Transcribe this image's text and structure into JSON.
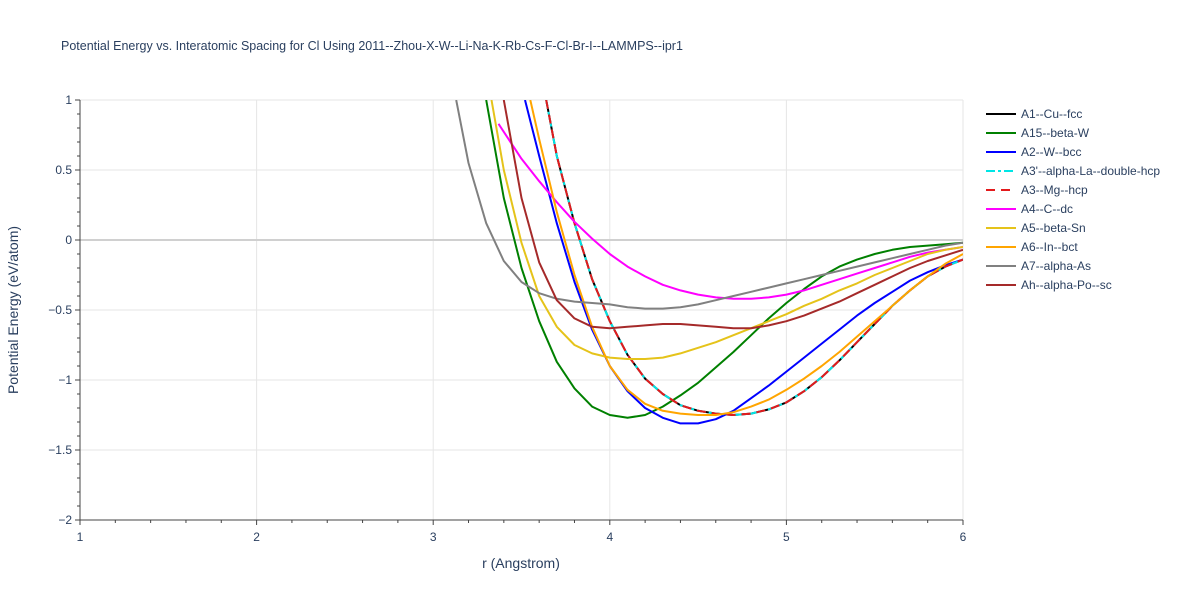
{
  "chart_data": {
    "type": "line",
    "title": "Potential Energy vs. Interatomic Spacing for Cl Using 2011--Zhou-X-W--Li-Na-K-Rb-Cs-F-Cl-Br-I--LAMMPS--ipr1",
    "xlabel": "r (Angstrom)",
    "ylabel": "Potential Energy (eV/atom)",
    "xlim": [
      1,
      6
    ],
    "ylim": [
      -2,
      1
    ],
    "x_ticks": [
      1,
      2,
      3,
      4,
      5,
      6
    ],
    "x_tick_labels": [
      "1",
      "2",
      "3",
      "4",
      "5",
      "6"
    ],
    "y_ticks": [
      -2,
      -1.5,
      -1,
      -0.5,
      0,
      0.5,
      1
    ],
    "y_tick_labels": [
      "−2",
      "−1.5",
      "−1",
      "−0.5",
      "0",
      "0.5",
      "1"
    ],
    "grid": true,
    "legend_position": "right",
    "series": [
      {
        "name": "A1--Cu--fcc",
        "color": "#000000",
        "dash": "solid",
        "x": [
          3.64,
          3.7,
          3.8,
          3.9,
          4.0,
          4.1,
          4.2,
          4.3,
          4.4,
          4.5,
          4.6,
          4.7,
          4.8,
          4.9,
          5.0,
          5.1,
          5.2,
          5.3,
          5.4,
          5.5,
          5.6,
          5.7,
          5.8,
          5.9,
          6.0
        ],
        "y": [
          1.0,
          0.6,
          0.12,
          -0.28,
          -0.58,
          -0.82,
          -0.99,
          -1.1,
          -1.18,
          -1.22,
          -1.24,
          -1.25,
          -1.24,
          -1.21,
          -1.16,
          -1.08,
          -0.98,
          -0.86,
          -0.73,
          -0.6,
          -0.47,
          -0.36,
          -0.26,
          -0.19,
          -0.14
        ]
      },
      {
        "name": "A15--beta-W",
        "color": "#008000",
        "dash": "solid",
        "x": [
          3.3,
          3.4,
          3.5,
          3.6,
          3.7,
          3.8,
          3.9,
          4.0,
          4.1,
          4.2,
          4.3,
          4.4,
          4.5,
          4.6,
          4.7,
          4.8,
          4.9,
          5.0,
          5.1,
          5.2,
          5.3,
          5.4,
          5.5,
          5.6,
          5.7,
          5.8,
          5.9,
          6.0
        ],
        "y": [
          1.0,
          0.3,
          -0.2,
          -0.58,
          -0.87,
          -1.06,
          -1.19,
          -1.25,
          -1.27,
          -1.25,
          -1.19,
          -1.11,
          -1.02,
          -0.91,
          -0.8,
          -0.68,
          -0.56,
          -0.45,
          -0.35,
          -0.26,
          -0.19,
          -0.14,
          -0.1,
          -0.07,
          -0.05,
          -0.04,
          -0.03,
          -0.02
        ]
      },
      {
        "name": "A2--W--bcc",
        "color": "#0000ff",
        "dash": "solid",
        "x": [
          3.52,
          3.6,
          3.7,
          3.8,
          3.9,
          4.0,
          4.1,
          4.2,
          4.3,
          4.4,
          4.5,
          4.6,
          4.7,
          4.8,
          4.9,
          5.0,
          5.1,
          5.2,
          5.3,
          5.4,
          5.5,
          5.6,
          5.7,
          5.8,
          5.9,
          6.0
        ],
        "y": [
          1.0,
          0.6,
          0.12,
          -0.3,
          -0.64,
          -0.9,
          -1.08,
          -1.2,
          -1.27,
          -1.31,
          -1.31,
          -1.28,
          -1.22,
          -1.13,
          -1.04,
          -0.94,
          -0.84,
          -0.74,
          -0.64,
          -0.54,
          -0.45,
          -0.37,
          -0.29,
          -0.23,
          -0.18,
          -0.14
        ]
      },
      {
        "name": "A3'--alpha-La--double-hcp",
        "color": "#00e5e5",
        "dash": "dashdot",
        "x": [
          3.64,
          3.7,
          3.8,
          3.9,
          4.0,
          4.1,
          4.2,
          4.3,
          4.4,
          4.5,
          4.6,
          4.7,
          4.8,
          4.9,
          5.0,
          5.1,
          5.2,
          5.3,
          5.4,
          5.5,
          5.6,
          5.7,
          5.8,
          5.9,
          6.0
        ],
        "y": [
          1.0,
          0.6,
          0.12,
          -0.28,
          -0.58,
          -0.82,
          -0.99,
          -1.1,
          -1.18,
          -1.22,
          -1.24,
          -1.25,
          -1.24,
          -1.21,
          -1.16,
          -1.08,
          -0.98,
          -0.86,
          -0.73,
          -0.6,
          -0.47,
          -0.36,
          -0.26,
          -0.19,
          -0.14
        ]
      },
      {
        "name": "A3--Mg--hcp",
        "color": "#e31a1c",
        "dash": "dash",
        "x": [
          3.64,
          3.7,
          3.8,
          3.9,
          4.0,
          4.1,
          4.2,
          4.3,
          4.4,
          4.5,
          4.6,
          4.7,
          4.8,
          4.9,
          5.0,
          5.1,
          5.2,
          5.3,
          5.4,
          5.5,
          5.6,
          5.7,
          5.8,
          5.9,
          6.0
        ],
        "y": [
          1.0,
          0.6,
          0.12,
          -0.28,
          -0.58,
          -0.82,
          -0.99,
          -1.1,
          -1.18,
          -1.22,
          -1.24,
          -1.25,
          -1.24,
          -1.21,
          -1.16,
          -1.08,
          -0.98,
          -0.86,
          -0.73,
          -0.6,
          -0.47,
          -0.36,
          -0.26,
          -0.19,
          -0.14
        ]
      },
      {
        "name": "A4--C--dc",
        "color": "#ff00ff",
        "dash": "solid",
        "x": [
          3.37,
          3.5,
          3.6,
          3.7,
          3.8,
          3.9,
          4.0,
          4.1,
          4.2,
          4.3,
          4.4,
          4.5,
          4.6,
          4.7,
          4.8,
          4.9,
          5.0,
          5.1,
          5.2,
          5.3,
          5.4,
          5.5,
          5.6,
          5.7,
          5.8,
          5.9,
          6.0
        ],
        "y": [
          0.83,
          0.58,
          0.42,
          0.27,
          0.13,
          0.01,
          -0.1,
          -0.19,
          -0.26,
          -0.32,
          -0.36,
          -0.39,
          -0.41,
          -0.42,
          -0.42,
          -0.41,
          -0.39,
          -0.36,
          -0.32,
          -0.28,
          -0.24,
          -0.2,
          -0.16,
          -0.12,
          -0.09,
          -0.07,
          -0.05
        ]
      },
      {
        "name": "A5--beta-Sn",
        "color": "#e5c31a",
        "dash": "solid",
        "x": [
          3.33,
          3.4,
          3.5,
          3.6,
          3.7,
          3.8,
          3.9,
          4.0,
          4.1,
          4.2,
          4.3,
          4.4,
          4.5,
          4.6,
          4.7,
          4.8,
          4.9,
          5.0,
          5.1,
          5.2,
          5.3,
          5.4,
          5.5,
          5.6,
          5.7,
          5.8,
          5.9,
          6.0
        ],
        "y": [
          1.0,
          0.5,
          -0.02,
          -0.4,
          -0.62,
          -0.75,
          -0.81,
          -0.84,
          -0.85,
          -0.85,
          -0.84,
          -0.81,
          -0.77,
          -0.73,
          -0.68,
          -0.63,
          -0.58,
          -0.53,
          -0.47,
          -0.42,
          -0.36,
          -0.31,
          -0.25,
          -0.2,
          -0.15,
          -0.1,
          -0.07,
          -0.05
        ]
      },
      {
        "name": "A6--In--bct",
        "color": "#ffa500",
        "dash": "solid",
        "x": [
          3.55,
          3.6,
          3.7,
          3.8,
          3.9,
          4.0,
          4.1,
          4.2,
          4.3,
          4.4,
          4.5,
          4.6,
          4.7,
          4.8,
          4.9,
          5.0,
          5.1,
          5.2,
          5.3,
          5.4,
          5.5,
          5.6,
          5.7,
          5.8,
          5.9,
          6.0
        ],
        "y": [
          1.0,
          0.72,
          0.2,
          -0.25,
          -0.62,
          -0.9,
          -1.07,
          -1.17,
          -1.22,
          -1.24,
          -1.25,
          -1.25,
          -1.23,
          -1.19,
          -1.14,
          -1.07,
          -0.99,
          -0.9,
          -0.8,
          -0.69,
          -0.58,
          -0.47,
          -0.36,
          -0.26,
          -0.17,
          -0.1
        ]
      },
      {
        "name": "A7--alpha-As",
        "color": "#808080",
        "dash": "solid",
        "x": [
          3.13,
          3.2,
          3.3,
          3.4,
          3.5,
          3.6,
          3.7,
          3.8,
          3.9,
          4.0,
          4.1,
          4.2,
          4.3,
          4.4,
          4.5,
          4.6,
          4.7,
          4.8,
          4.9,
          5.0,
          5.1,
          5.2,
          5.3,
          5.4,
          5.5,
          5.6,
          5.7,
          5.8,
          5.9,
          6.0
        ],
        "y": [
          1.0,
          0.55,
          0.12,
          -0.15,
          -0.3,
          -0.38,
          -0.42,
          -0.44,
          -0.45,
          -0.46,
          -0.48,
          -0.49,
          -0.49,
          -0.48,
          -0.46,
          -0.43,
          -0.4,
          -0.37,
          -0.34,
          -0.31,
          -0.28,
          -0.25,
          -0.22,
          -0.19,
          -0.16,
          -0.13,
          -0.1,
          -0.07,
          -0.04,
          -0.02
        ]
      },
      {
        "name": "Ah--alpha-Po--sc",
        "color": "#a52a2a",
        "dash": "solid",
        "x": [
          3.4,
          3.5,
          3.6,
          3.7,
          3.8,
          3.9,
          4.0,
          4.1,
          4.2,
          4.3,
          4.4,
          4.5,
          4.6,
          4.7,
          4.8,
          4.9,
          5.0,
          5.1,
          5.2,
          5.3,
          5.4,
          5.5,
          5.6,
          5.7,
          5.8,
          5.9,
          6.0
        ],
        "y": [
          1.0,
          0.3,
          -0.16,
          -0.43,
          -0.56,
          -0.62,
          -0.63,
          -0.62,
          -0.61,
          -0.6,
          -0.6,
          -0.61,
          -0.62,
          -0.63,
          -0.63,
          -0.61,
          -0.58,
          -0.54,
          -0.49,
          -0.44,
          -0.38,
          -0.32,
          -0.26,
          -0.2,
          -0.15,
          -0.11,
          -0.07
        ]
      }
    ]
  }
}
